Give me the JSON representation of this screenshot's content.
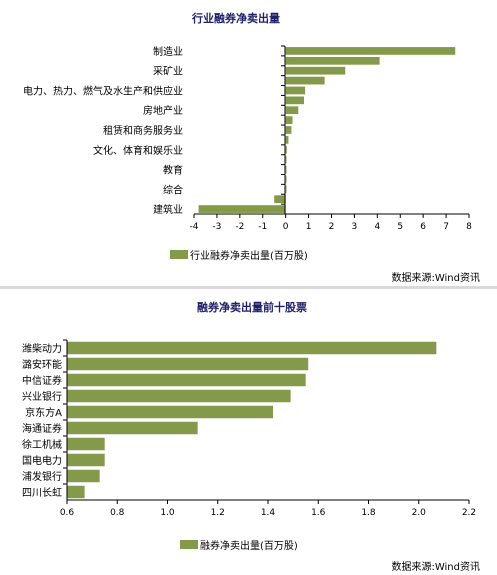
{
  "colors": {
    "bar": "#849a4a",
    "axis": "#000000",
    "title": "#1f1f6e"
  },
  "source_text": "数据来源:Wind资讯",
  "chart_data": [
    {
      "type": "bar",
      "orientation": "horizontal",
      "title": "行业融券净卖出量",
      "categories": [
        "制造业",
        "",
        "采矿业",
        "",
        "电力、热力、燃气及水生产和供应业",
        "",
        "房地产业",
        "",
        "租赁和商务服务业",
        "",
        "文化、体育和娱乐业",
        "",
        "教育",
        "",
        "综合",
        "",
        "建筑业"
      ],
      "series": [
        {
          "name": "行业融券净卖出量(百万股)",
          "values": [
            7.4,
            4.1,
            2.6,
            1.7,
            0.85,
            0.8,
            0.55,
            0.3,
            0.25,
            0.12,
            0.05,
            0.02,
            0.02,
            0.0,
            0.0,
            -0.5,
            -3.8
          ]
        }
      ],
      "xlim": [
        -4,
        8
      ],
      "xticks": [
        -4,
        -3,
        -2,
        -1,
        0,
        1,
        2,
        3,
        4,
        5,
        6,
        7,
        8
      ],
      "legend": "bottom"
    },
    {
      "type": "bar",
      "orientation": "horizontal",
      "title": "融券净卖出量前十股票",
      "categories": [
        "潍柴动力",
        "潞安环能",
        "中信证券",
        "兴业银行",
        "京东方A",
        "海通证券",
        "徐工机械",
        "国电电力",
        "浦发银行",
        "四川长虹"
      ],
      "series": [
        {
          "name": "融券净卖出量(百万股)",
          "values": [
            2.07,
            1.56,
            1.55,
            1.49,
            1.42,
            1.12,
            0.75,
            0.75,
            0.73,
            0.67
          ]
        }
      ],
      "xlim": [
        0.6,
        2.2
      ],
      "xticks": [
        "0.6",
        "0.8",
        "1.0",
        "1.2",
        "1.4",
        "1.6",
        "1.8",
        "2.0",
        "2.2"
      ],
      "legend": "bottom"
    }
  ]
}
